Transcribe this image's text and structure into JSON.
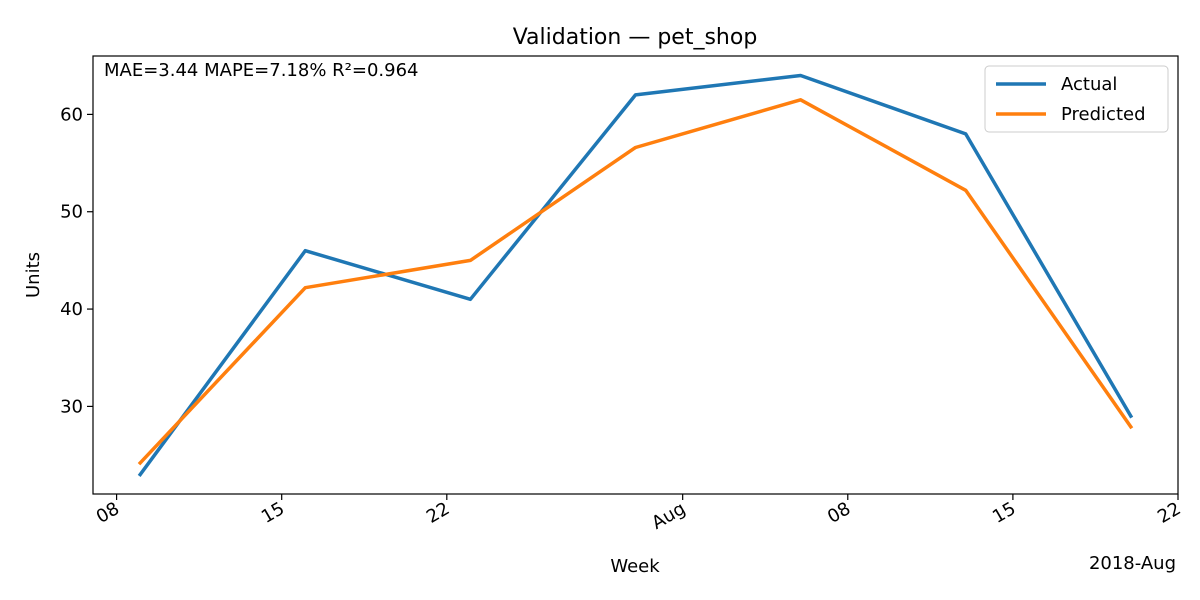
{
  "chart_data": {
    "type": "line",
    "title": "Validation — pet_shop",
    "xlabel": "Week",
    "ylabel": "Units",
    "x_corner_label": "2018-Aug",
    "metrics_text": "MAE=3.44  MAPE=7.18%  R²=0.964",
    "x": [
      "2018-07-09",
      "2018-07-16",
      "2018-07-23",
      "2018-07-30",
      "2018-08-06",
      "2018-08-13",
      "2018-08-20"
    ],
    "x_tick_dates": [
      "2018-07-08",
      "2018-07-15",
      "2018-07-22",
      "2018-08-01",
      "2018-08-08",
      "2018-08-15",
      "2018-08-22"
    ],
    "x_tick_labels": [
      "08",
      "15",
      "22",
      "Aug",
      "08",
      "15",
      "22"
    ],
    "xlim": [
      "2018-07-07",
      "2018-08-22"
    ],
    "y_ticks": [
      30,
      40,
      50,
      60
    ],
    "ylim": [
      21,
      66
    ],
    "grid": false,
    "legend_position": "top-right",
    "series": [
      {
        "name": "Actual",
        "color": "#1f77b4",
        "values": [
          23,
          46,
          41,
          62,
          64,
          58,
          29
        ]
      },
      {
        "name": "Predicted",
        "color": "#ff7f0e",
        "values": [
          24.2,
          42.2,
          45.0,
          56.6,
          61.5,
          52.2,
          27.9
        ]
      }
    ]
  }
}
